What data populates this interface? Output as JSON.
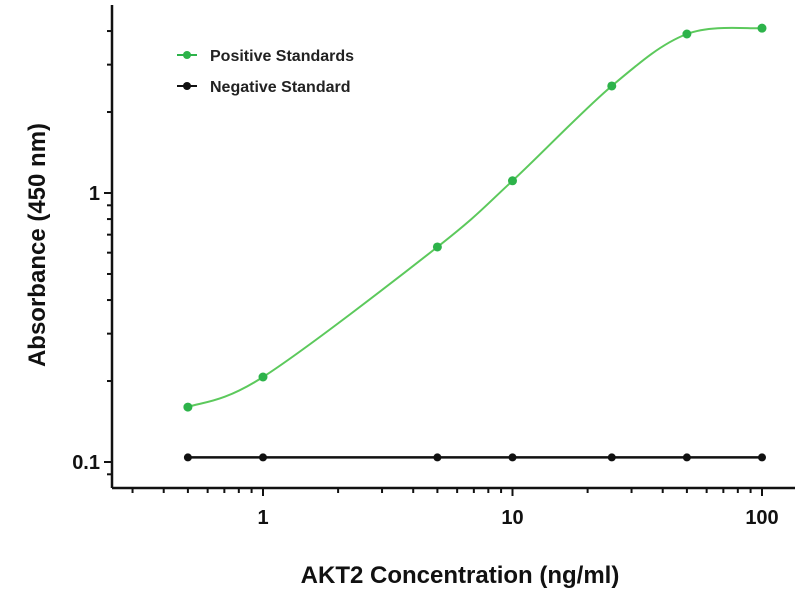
{
  "chart_data": {
    "type": "line",
    "title": "",
    "xlabel": "AKT2 Concentration (ng/ml)",
    "ylabel": "Absorbance (450 nm)",
    "xscale": "log",
    "yscale": "log",
    "xlim": [
      0.3,
      140
    ],
    "ylim": [
      0.075,
      4.5
    ],
    "xticks": [
      {
        "value": 1,
        "label": "1"
      },
      {
        "value": 10,
        "label": "10"
      },
      {
        "value": 100,
        "label": "100"
      }
    ],
    "yticks": [
      {
        "value": 0.1,
        "label": "0.1"
      },
      {
        "value": 1,
        "label": "1"
      }
    ],
    "legend_position": "top-left",
    "series": [
      {
        "name": "Positive Standards",
        "color": "#2db34a",
        "curve_color": "#5cc95c",
        "x": [
          0.5,
          1,
          5,
          10,
          25,
          50,
          100
        ],
        "y": [
          0.16,
          0.207,
          0.63,
          1.11,
          2.5,
          3.9,
          4.1
        ]
      },
      {
        "name": "Negative Standard",
        "color": "#111111",
        "x": [
          0.5,
          1,
          5,
          10,
          25,
          50,
          100
        ],
        "y": [
          0.104,
          0.104,
          0.104,
          0.104,
          0.104,
          0.104,
          0.104
        ]
      }
    ]
  }
}
